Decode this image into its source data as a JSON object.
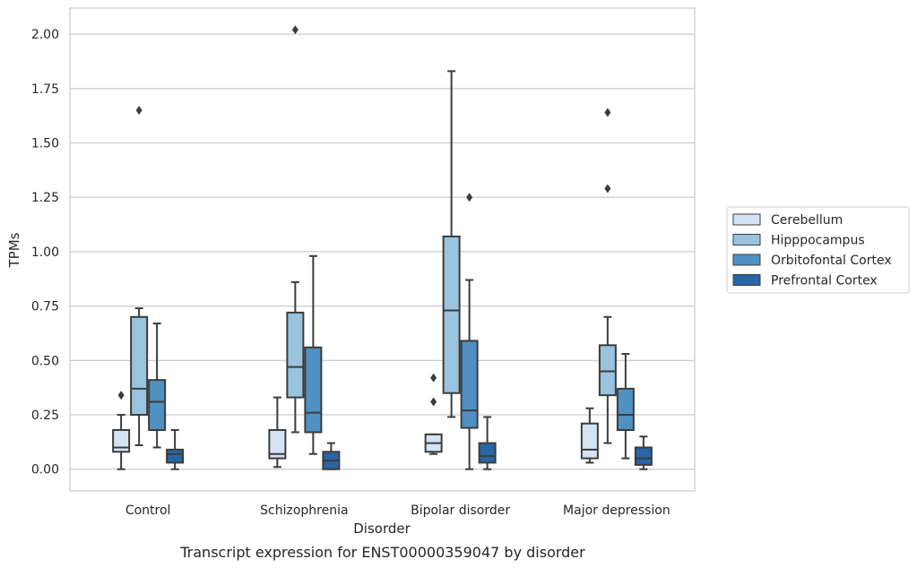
{
  "chart_data": {
    "type": "box",
    "caption": "Transcript expression for ENST00000359047 by disorder",
    "xlabel": "Disorder",
    "ylabel": "TPMs",
    "ylim": [
      -0.1,
      2.12
    ],
    "yticks": [
      0.0,
      0.25,
      0.5,
      0.75,
      1.0,
      1.25,
      1.5,
      1.75,
      2.0
    ],
    "ytick_labels": [
      "0.00",
      "0.25",
      "0.50",
      "0.75",
      "1.00",
      "1.25",
      "1.50",
      "1.75",
      "2.00"
    ],
    "grid": true,
    "legend_position": "right",
    "categories": [
      "Control",
      "Schizophrenia",
      "Bipolar disorder",
      "Major depression"
    ],
    "series": [
      {
        "name": "Cerebellum",
        "color": "#d4e4f3",
        "boxes": [
          {
            "whisker_low": 0.0,
            "q1": 0.08,
            "median": 0.1,
            "q3": 0.18,
            "whisker_high": 0.25,
            "outliers": [
              0.34
            ]
          },
          {
            "whisker_low": 0.01,
            "q1": 0.05,
            "median": 0.07,
            "q3": 0.18,
            "whisker_high": 0.33,
            "outliers": []
          },
          {
            "whisker_low": 0.07,
            "q1": 0.08,
            "median": 0.12,
            "q3": 0.16,
            "whisker_high": 0.16,
            "outliers": [
              0.31,
              0.42
            ]
          },
          {
            "whisker_low": 0.03,
            "q1": 0.05,
            "median": 0.09,
            "q3": 0.21,
            "whisker_high": 0.28,
            "outliers": []
          }
        ]
      },
      {
        "name": "Hipppocampus",
        "color": "#9ac3de",
        "boxes": [
          {
            "whisker_low": 0.11,
            "q1": 0.25,
            "median": 0.37,
            "q3": 0.7,
            "whisker_high": 0.74,
            "outliers": [
              1.65
            ]
          },
          {
            "whisker_low": 0.17,
            "q1": 0.33,
            "median": 0.47,
            "q3": 0.72,
            "whisker_high": 0.86,
            "outliers": [
              2.02
            ]
          },
          {
            "whisker_low": 0.24,
            "q1": 0.35,
            "median": 0.73,
            "q3": 1.07,
            "whisker_high": 1.83,
            "outliers": []
          },
          {
            "whisker_low": 0.12,
            "q1": 0.34,
            "median": 0.45,
            "q3": 0.57,
            "whisker_high": 0.7,
            "outliers": [
              1.29,
              1.64
            ]
          }
        ]
      },
      {
        "name": "Orbitofontal Cortex",
        "color": "#4f91c2",
        "boxes": [
          {
            "whisker_low": 0.1,
            "q1": 0.18,
            "median": 0.31,
            "q3": 0.41,
            "whisker_high": 0.67,
            "outliers": []
          },
          {
            "whisker_low": 0.07,
            "q1": 0.17,
            "median": 0.26,
            "q3": 0.56,
            "whisker_high": 0.98,
            "outliers": []
          },
          {
            "whisker_low": 0.0,
            "q1": 0.19,
            "median": 0.27,
            "q3": 0.59,
            "whisker_high": 0.87,
            "outliers": [
              1.25
            ]
          },
          {
            "whisker_low": 0.05,
            "q1": 0.18,
            "median": 0.25,
            "q3": 0.37,
            "whisker_high": 0.53,
            "outliers": []
          }
        ]
      },
      {
        "name": "Prefrontal Cortex",
        "color": "#2866a5",
        "boxes": [
          {
            "whisker_low": 0.0,
            "q1": 0.03,
            "median": 0.07,
            "q3": 0.09,
            "whisker_high": 0.18,
            "outliers": []
          },
          {
            "whisker_low": 0.0,
            "q1": 0.0,
            "median": 0.04,
            "q3": 0.08,
            "whisker_high": 0.12,
            "outliers": []
          },
          {
            "whisker_low": 0.0,
            "q1": 0.03,
            "median": 0.06,
            "q3": 0.12,
            "whisker_high": 0.24,
            "outliers": []
          },
          {
            "whisker_low": 0.0,
            "q1": 0.02,
            "median": 0.05,
            "q3": 0.1,
            "whisker_high": 0.15,
            "outliers": []
          }
        ]
      }
    ]
  }
}
